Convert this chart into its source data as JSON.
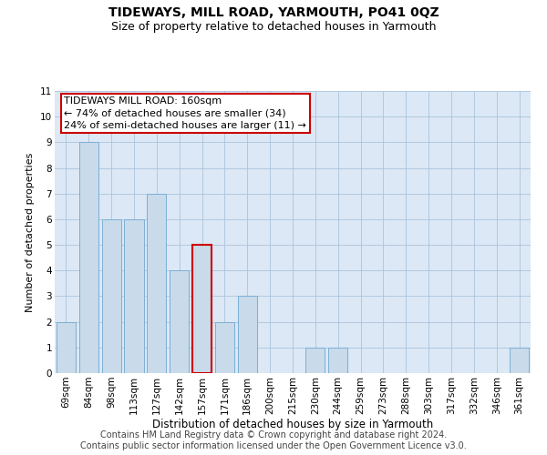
{
  "title": "TIDEWAYS, MILL ROAD, YARMOUTH, PO41 0QZ",
  "subtitle": "Size of property relative to detached houses in Yarmouth",
  "xlabel": "Distribution of detached houses by size in Yarmouth",
  "ylabel": "Number of detached properties",
  "categories": [
    "69sqm",
    "84sqm",
    "98sqm",
    "113sqm",
    "127sqm",
    "142sqm",
    "157sqm",
    "171sqm",
    "186sqm",
    "200sqm",
    "215sqm",
    "230sqm",
    "244sqm",
    "259sqm",
    "273sqm",
    "288sqm",
    "303sqm",
    "317sqm",
    "332sqm",
    "346sqm",
    "361sqm"
  ],
  "values": [
    2,
    9,
    6,
    6,
    7,
    4,
    5,
    2,
    3,
    0,
    0,
    1,
    1,
    0,
    0,
    0,
    0,
    0,
    0,
    0,
    1
  ],
  "highlight_index": 6,
  "bar_color": "#c9daea",
  "bar_edge_color": "#7aafd4",
  "highlight_bar_color": "#c9daea",
  "highlight_bar_edge_color": "#cc0000",
  "annotation_text": "TIDEWAYS MILL ROAD: 160sqm\n← 74% of detached houses are smaller (34)\n24% of semi-detached houses are larger (11) →",
  "annotation_box_edge_color": "#cc0000",
  "annotation_box_face_color": "#ffffff",
  "ylim": [
    0,
    11
  ],
  "yticks": [
    0,
    1,
    2,
    3,
    4,
    5,
    6,
    7,
    8,
    9,
    10,
    11
  ],
  "grid_color": "#aac4de",
  "bg_color": "#dce8f5",
  "footer_text": "Contains HM Land Registry data © Crown copyright and database right 2024.\nContains public sector information licensed under the Open Government Licence v3.0.",
  "title_fontsize": 10,
  "subtitle_fontsize": 9,
  "xlabel_fontsize": 8.5,
  "ylabel_fontsize": 8,
  "tick_fontsize": 7.5,
  "annotation_fontsize": 8,
  "footer_fontsize": 7
}
